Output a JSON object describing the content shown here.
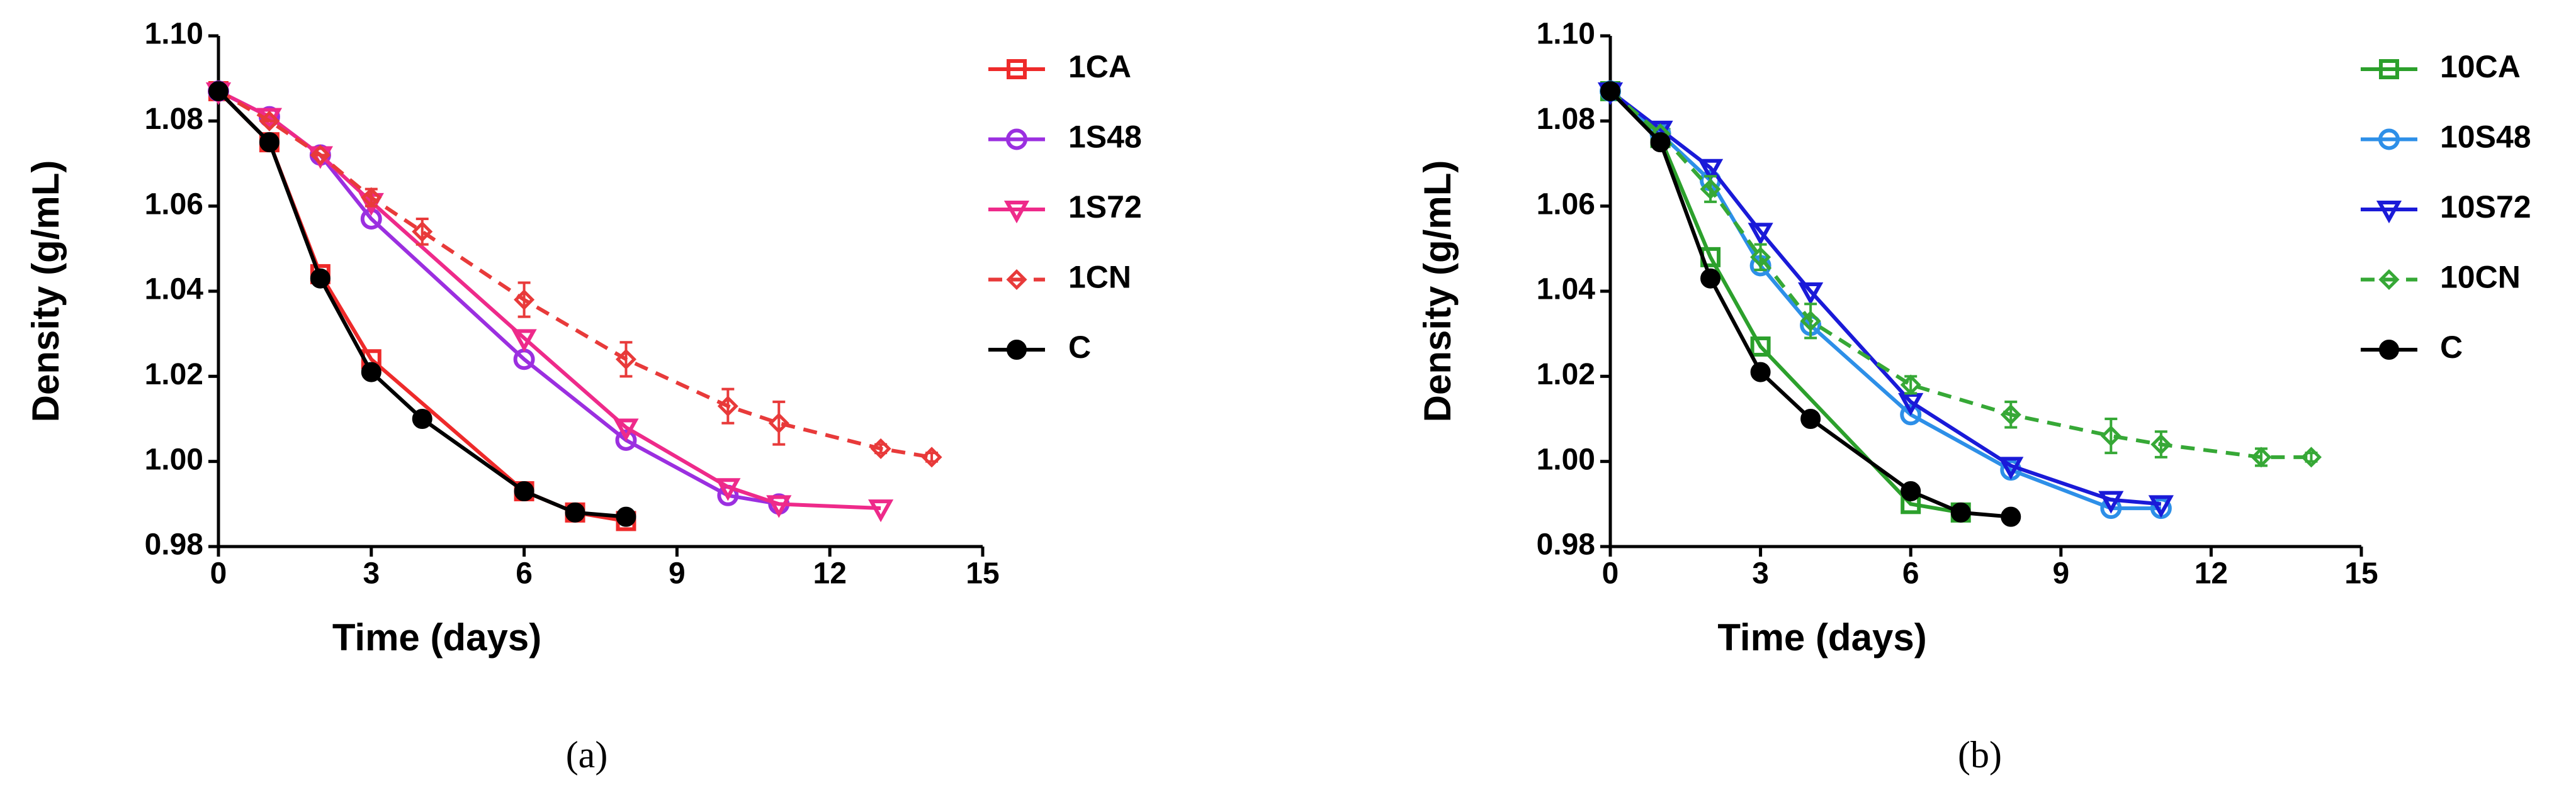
{
  "chart_data": [
    {
      "type": "line",
      "caption": "(a)",
      "xlabel": "Time (days)",
      "ylabel": "Density (g/mL)",
      "xlim": [
        0,
        15
      ],
      "xticks": [
        0,
        3,
        6,
        9,
        12,
        15
      ],
      "ylim": [
        0.98,
        1.1
      ],
      "yticks": [
        0.98,
        {
          "value": 1.0,
          "label": "1.00"
        },
        1.02,
        1.04,
        1.06,
        1.08,
        {
          "value": 1.1,
          "label": "1.10"
        }
      ],
      "legend": "right",
      "series": [
        {
          "name": "1CA",
          "color": "#ee2a2a",
          "marker": "square",
          "linestyle": "solid",
          "x": [
            0,
            1,
            2,
            3,
            6,
            7,
            8
          ],
          "values": [
            1.087,
            1.075,
            1.044,
            1.024,
            0.993,
            0.988,
            0.986
          ]
        },
        {
          "name": "1S48",
          "color": "#9b2fe0",
          "marker": "circle",
          "linestyle": "solid",
          "x": [
            0,
            1,
            2,
            3,
            6,
            8,
            10,
            11
          ],
          "values": [
            1.087,
            1.081,
            1.072,
            1.057,
            1.024,
            1.005,
            0.992,
            0.99
          ]
        },
        {
          "name": "1S72",
          "color": "#ee2a8a",
          "marker": "triangle",
          "linestyle": "solid",
          "x": [
            0,
            1,
            2,
            3,
            6,
            8,
            10,
            11,
            13
          ],
          "values": [
            1.087,
            1.081,
            1.072,
            1.061,
            1.029,
            1.008,
            0.994,
            0.99,
            0.989
          ]
        },
        {
          "name": "1CN",
          "color": "#e83a3a",
          "marker": "diamond",
          "linestyle": "dashed",
          "x": [
            0,
            1,
            2,
            3,
            4,
            6,
            8,
            10,
            11,
            13,
            14
          ],
          "values": [
            1.087,
            1.08,
            1.072,
            1.062,
            1.054,
            1.038,
            1.024,
            1.013,
            1.009,
            1.003,
            1.001
          ],
          "errors": [
            0,
            0,
            0,
            0.002,
            0.003,
            0.004,
            0.004,
            0.004,
            0.005,
            0.001,
            0.001
          ]
        },
        {
          "name": "C",
          "color": "#000000",
          "marker": "dot",
          "linestyle": "solid",
          "x": [
            0,
            1,
            2,
            3,
            4,
            6,
            7,
            8
          ],
          "values": [
            1.087,
            1.075,
            1.043,
            1.021,
            1.01,
            0.993,
            0.988,
            0.987
          ]
        }
      ]
    },
    {
      "type": "line",
      "caption": "(b)",
      "xlabel": "Time (days)",
      "ylabel": "Density (g/mL)",
      "xlim": [
        0,
        15
      ],
      "xticks": [
        0,
        3,
        6,
        9,
        12,
        15
      ],
      "ylim": [
        0.98,
        1.1
      ],
      "yticks": [
        0.98,
        {
          "value": 1.0,
          "label": "1.00"
        },
        1.02,
        1.04,
        1.06,
        1.08,
        {
          "value": 1.1,
          "label": "1.10"
        }
      ],
      "legend": "right",
      "series": [
        {
          "name": "10CA",
          "color": "#2ca02c",
          "marker": "square",
          "linestyle": "solid",
          "x": [
            0,
            1,
            2,
            3,
            6,
            7
          ],
          "values": [
            1.087,
            1.076,
            1.048,
            1.027,
            0.99,
            0.988
          ]
        },
        {
          "name": "10S48",
          "color": "#2d8fe8",
          "marker": "circle",
          "linestyle": "solid",
          "x": [
            0,
            1,
            2,
            3,
            4,
            6,
            8,
            10,
            11
          ],
          "values": [
            1.087,
            1.077,
            1.066,
            1.046,
            1.032,
            1.011,
            0.998,
            0.989,
            0.989
          ]
        },
        {
          "name": "10S72",
          "color": "#1a1ad8",
          "marker": "triangle",
          "linestyle": "solid",
          "x": [
            0,
            1,
            2,
            3,
            4,
            6,
            8,
            10,
            11
          ],
          "values": [
            1.087,
            1.078,
            1.069,
            1.054,
            1.04,
            1.014,
            0.999,
            0.991,
            0.99
          ]
        },
        {
          "name": "10CN",
          "color": "#36a836",
          "marker": "diamond",
          "linestyle": "dashed",
          "x": [
            0,
            1,
            2,
            3,
            4,
            6,
            8,
            10,
            11,
            13,
            14
          ],
          "values": [
            1.087,
            1.077,
            1.064,
            1.048,
            1.033,
            1.018,
            1.011,
            1.006,
            1.004,
            1.001,
            1.001
          ],
          "errors": [
            0,
            0,
            0.003,
            0.003,
            0.004,
            0.002,
            0.003,
            0.004,
            0.003,
            0.002,
            0.001
          ]
        },
        {
          "name": "C",
          "color": "#000000",
          "marker": "dot",
          "linestyle": "solid",
          "x": [
            0,
            1,
            2,
            3,
            4,
            6,
            7,
            8
          ],
          "values": [
            1.087,
            1.075,
            1.043,
            1.021,
            1.01,
            0.993,
            0.988,
            0.987
          ]
        }
      ]
    }
  ]
}
